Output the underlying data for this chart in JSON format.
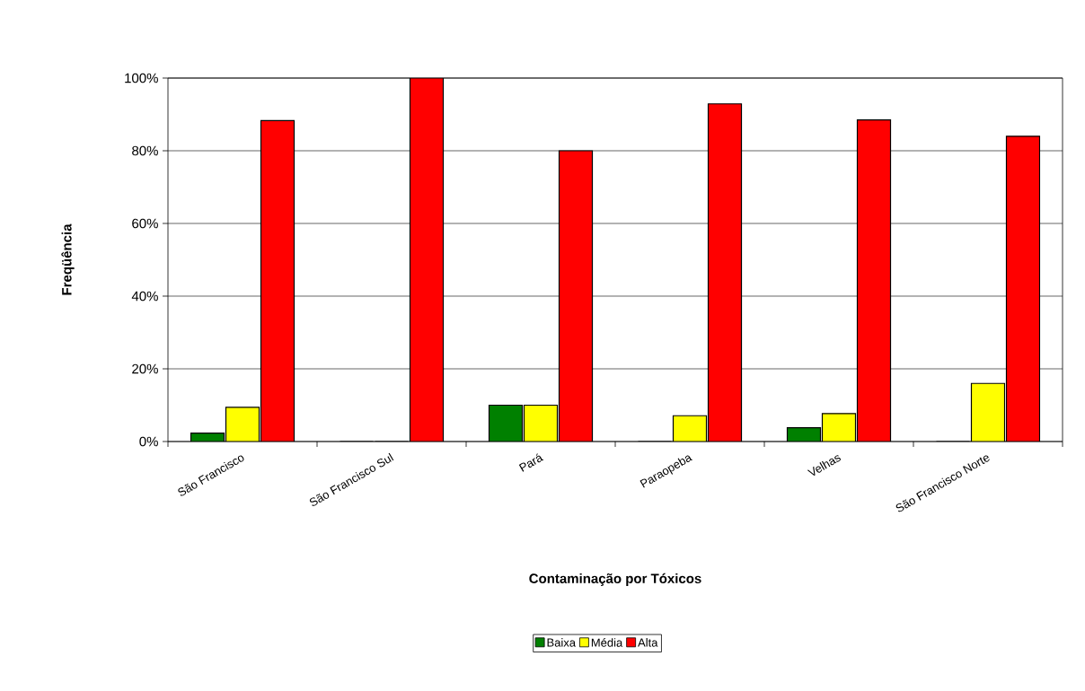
{
  "chart_data": {
    "type": "bar",
    "xlabel": "Contaminação por Tóxicos",
    "ylabel": "Freqüência",
    "categories": [
      "São Francisco",
      "São Francisco Sul",
      "Pará",
      "Paraopeba",
      "Velhas",
      "São Francisco Norte"
    ],
    "series": [
      {
        "name": "Baixa",
        "color": "#008000",
        "values": [
          2.3,
          0,
          10,
          0,
          3.8,
          0
        ]
      },
      {
        "name": "Média",
        "color": "#ffff00",
        "values": [
          9.4,
          0,
          10,
          7.1,
          7.7,
          16
        ]
      },
      {
        "name": "Alta",
        "color": "#ff0000",
        "values": [
          88.3,
          100,
          80,
          92.9,
          88.5,
          84
        ]
      }
    ],
    "ylim": [
      0,
      100
    ],
    "yticks": [
      {
        "value": 0,
        "label": "0%"
      },
      {
        "value": 20,
        "label": "20%"
      },
      {
        "value": 40,
        "label": "40%"
      },
      {
        "value": 60,
        "label": "60%"
      },
      {
        "value": 80,
        "label": "80%"
      },
      {
        "value": 100,
        "label": "100%"
      }
    ],
    "grid": "y",
    "legend": "bottom"
  }
}
